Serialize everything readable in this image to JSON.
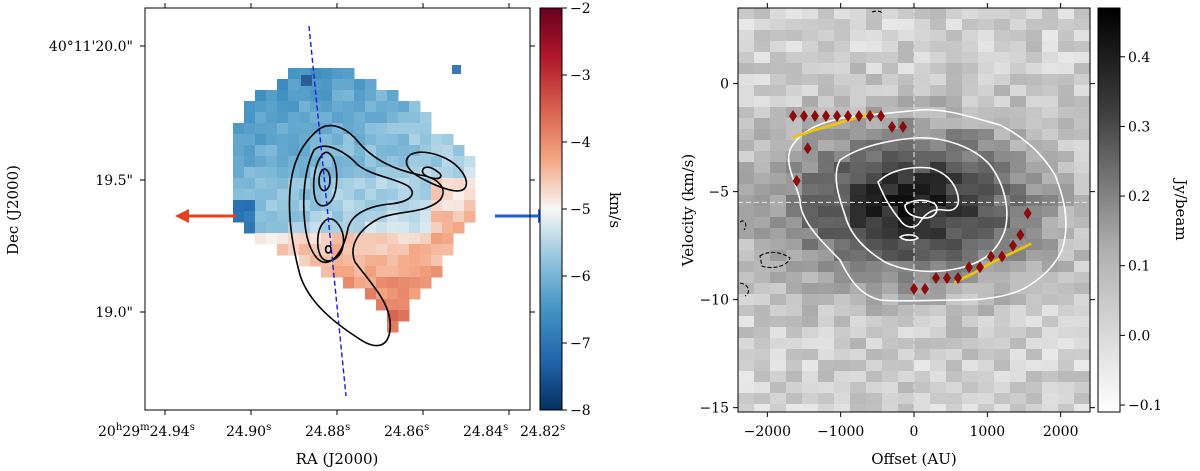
{
  "chart_data": [
    {
      "type": "heatmap",
      "title": "",
      "xlabel": "RA (J2000)",
      "ylabel": "Dec (J2000)",
      "colorbar_label": "km/s",
      "colorbar_range": [
        -8,
        -2
      ],
      "colorbar_ticks": [
        "-2",
        "-3",
        "-4",
        "-5",
        "-6",
        "-7",
        "-8"
      ],
      "colormap": "RdBu_r",
      "xtick_prefix": "20h29m24.94s",
      "xticks": [
        {
          "h": "20",
          "m": "29",
          "s": "24.94",
          "prefix": true
        },
        {
          "s": "24.90"
        },
        {
          "s": "24.88"
        },
        {
          "s": "24.86"
        },
        {
          "s": "24.84"
        },
        {
          "s": "24.82"
        }
      ],
      "yticks": [
        "40°11'20.0\"",
        "19.5\"",
        "19.0\""
      ],
      "arrows": [
        {
          "direction": "left",
          "color": "#e8401f",
          "meaning": "redshifted"
        },
        {
          "direction": "right",
          "color": "#1f5fd6",
          "meaning": "blueshifted"
        }
      ],
      "outflow_axis": {
        "style": "dashed",
        "color": "#1a1adb"
      },
      "contours": {
        "color": "#000000",
        "levels": 4
      }
    },
    {
      "type": "heatmap",
      "title": "",
      "xlabel": "Offset (AU)",
      "ylabel": "Velocity (km/s)",
      "xlim": [
        -2400,
        2400
      ],
      "ylim": [
        -15.2,
        3.5
      ],
      "xticks": [
        "-2000",
        "-1000",
        "0",
        "1000",
        "2000"
      ],
      "xtick_values": [
        -2000,
        -1000,
        0,
        1000,
        2000
      ],
      "yticks": [
        "0",
        "-5",
        "-10",
        "-15"
      ],
      "ytick_values": [
        0,
        -5,
        -10,
        -15
      ],
      "colorbar_label": "Jy/beam",
      "colorbar_range": [
        -0.11,
        0.47
      ],
      "colorbar_ticks": [
        "0.4",
        "0.3",
        "0.2",
        "0.1",
        "0.0",
        "-0.1"
      ],
      "colorbar_tick_values": [
        0.4,
        0.3,
        0.2,
        0.1,
        0.0,
        -0.1
      ],
      "colormap": "gray_r",
      "systemic_velocity": -5.5,
      "center_offset": 0,
      "peak_points": [
        {
          "x": -1650,
          "y": -1.5
        },
        {
          "x": -1500,
          "y": -1.5
        },
        {
          "x": -1350,
          "y": -1.5
        },
        {
          "x": -1200,
          "y": -1.5
        },
        {
          "x": -1050,
          "y": -1.5
        },
        {
          "x": -900,
          "y": -1.5
        },
        {
          "x": -750,
          "y": -1.5
        },
        {
          "x": -600,
          "y": -1.5
        },
        {
          "x": -450,
          "y": -1.5
        },
        {
          "x": -300,
          "y": -2.0
        },
        {
          "x": -150,
          "y": -2.0
        },
        {
          "x": -1450,
          "y": -3.0
        },
        {
          "x": -1600,
          "y": -4.5
        },
        {
          "x": 0,
          "y": -9.5
        },
        {
          "x": 150,
          "y": -9.5
        },
        {
          "x": 300,
          "y": -9.0
        },
        {
          "x": 450,
          "y": -9.0
        },
        {
          "x": 600,
          "y": -9.0
        },
        {
          "x": 750,
          "y": -8.5
        },
        {
          "x": 900,
          "y": -8.5
        },
        {
          "x": 1050,
          "y": -8.0
        },
        {
          "x": 1200,
          "y": -8.0
        },
        {
          "x": 1350,
          "y": -7.5
        },
        {
          "x": 1450,
          "y": -7.0
        },
        {
          "x": 1550,
          "y": -6.0
        }
      ],
      "keplerian_curves": [
        {
          "color": "#f5c400",
          "x": [
            -1650,
            -1400,
            -1100,
            -800,
            -550
          ],
          "y": [
            -2.5,
            -2.2,
            -1.9,
            -1.6,
            -1.35
          ]
        },
        {
          "color": "#f5c400",
          "x": [
            550,
            800,
            1050,
            1300,
            1600
          ],
          "y": [
            -9.2,
            -8.8,
            -8.3,
            -7.9,
            -7.4
          ]
        }
      ]
    }
  ]
}
